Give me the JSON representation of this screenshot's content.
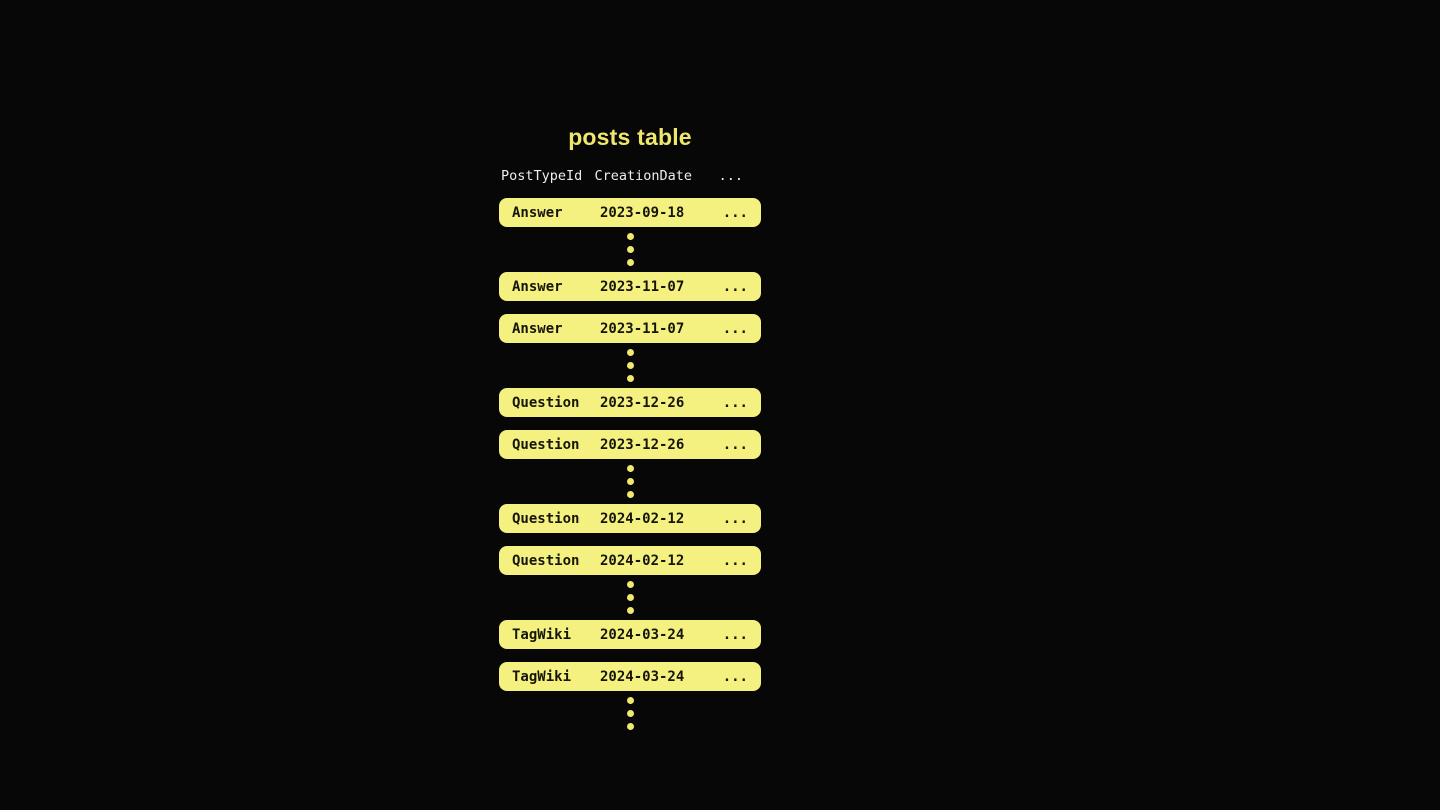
{
  "title": "posts table",
  "table": {
    "headers": {
      "post_type_id": "PostTypeId",
      "creation_date": "CreationDate",
      "more": "..."
    },
    "rows": [
      {
        "post_type_id": "Answer",
        "creation_date": "2023-09-18",
        "more": "..."
      },
      {
        "post_type_id": "Answer",
        "creation_date": "2023-11-07",
        "more": "..."
      },
      {
        "post_type_id": "Answer",
        "creation_date": "2023-11-07",
        "more": "..."
      },
      {
        "post_type_id": "Question",
        "creation_date": "2023-12-26",
        "more": "..."
      },
      {
        "post_type_id": "Question",
        "creation_date": "2023-12-26",
        "more": "..."
      },
      {
        "post_type_id": "Question",
        "creation_date": "2024-02-12",
        "more": "..."
      },
      {
        "post_type_id": "Question",
        "creation_date": "2024-02-12",
        "more": "..."
      },
      {
        "post_type_id": "TagWiki",
        "creation_date": "2024-03-24",
        "more": "..."
      },
      {
        "post_type_id": "TagWiki",
        "creation_date": "2024-03-24",
        "more": "..."
      }
    ]
  },
  "icons": {
    "vertical_ellipsis": "three stacked round dots indicating omitted rows"
  },
  "colors": {
    "background": "#070707",
    "title_text": "#EFE76C",
    "header_text": "#EDEDED",
    "row_fill": "#F5F180",
    "row_text": "#15150A",
    "dot_fill": "#EFE96E"
  }
}
